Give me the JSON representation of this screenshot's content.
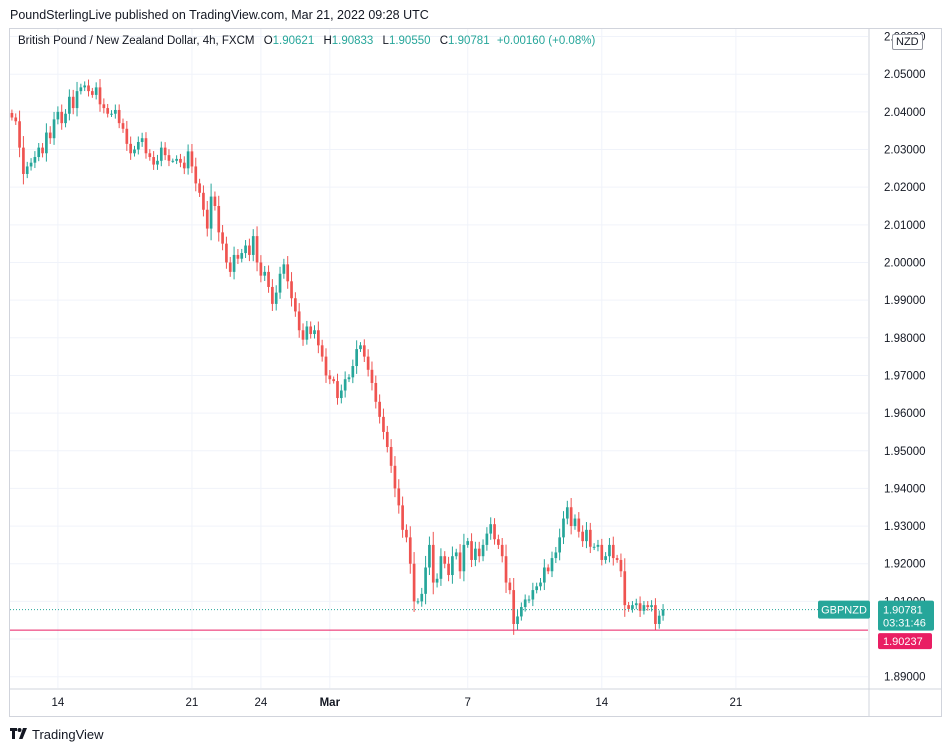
{
  "publisher_line": "PoundSterlingLive published on TradingView.com, Mar 21, 2022 09:28 UTC",
  "legend": {
    "title": "British Pound / New Zealand Dollar, 4h, FXCM",
    "open_key": "O",
    "open": "1.90621",
    "high_key": "H",
    "high": "1.90833",
    "low_key": "L",
    "low": "1.90550",
    "close_key": "C",
    "close": "1.90781",
    "change": "+0.00160 (+0.08%)"
  },
  "currency": "NZD",
  "brand": {
    "name": "TradingView",
    "logo_icon": "tradingview-logo-icon"
  },
  "chart_data": {
    "type": "candlestick",
    "symbol": "GBPNZD",
    "y_axis": {
      "range": [
        1.887,
        2.062
      ],
      "ticks": [
        "1.89000",
        "1.90000",
        "1.91000",
        "1.92000",
        "1.93000",
        "1.94000",
        "1.95000",
        "1.96000",
        "1.97000",
        "1.98000",
        "1.99000",
        "2.00000",
        "2.01000",
        "2.02000",
        "2.03000",
        "2.04000",
        "2.05000",
        "2.06000"
      ]
    },
    "x_axis": {
      "ticks": [
        {
          "label": "14",
          "index": 12
        },
        {
          "label": "21",
          "index": 47
        },
        {
          "label": "24",
          "index": 65
        },
        {
          "label": "Mar",
          "index": 83
        },
        {
          "label": "7",
          "index": 119
        },
        {
          "label": "14",
          "index": 154
        },
        {
          "label": "21",
          "index": 189
        }
      ],
      "total_slots": 224
    },
    "up_color": "#26a69a",
    "down_color": "#ef5350",
    "closes": [
      2.0385,
      2.0375,
      2.0305,
      2.0235,
      2.0255,
      2.0265,
      2.028,
      2.0305,
      2.029,
      2.0345,
      2.033,
      2.038,
      2.04,
      2.037,
      2.0395,
      2.044,
      2.041,
      2.0455,
      2.0465,
      2.047,
      2.0455,
      2.0445,
      2.0465,
      2.042,
      2.041,
      2.0395,
      2.0395,
      2.0405,
      2.037,
      2.0355,
      2.0315,
      2.029,
      2.03,
      2.032,
      2.033,
      2.029,
      2.028,
      2.026,
      2.027,
      2.0305,
      2.0285,
      2.027,
      2.027,
      2.0275,
      2.0265,
      2.025,
      2.0295,
      2.0255,
      2.021,
      2.0185,
      2.014,
      2.009,
      2.0175,
      2.015,
      2.008,
      2.005,
      2.0,
      1.9975,
      2.002,
      2.001,
      2.0025,
      2.0045,
      2.002,
      2.007,
      2.0,
      1.9965,
      1.9975,
      1.9935,
      1.989,
      1.992,
      1.997,
      1.9995,
      1.995,
      1.9905,
      1.987,
      1.982,
      1.9795,
      1.983,
      1.981,
      1.982,
      1.978,
      1.975,
      1.97,
      1.969,
      1.9685,
      1.964,
      1.966,
      1.969,
      1.9695,
      1.9725,
      1.977,
      1.978,
      1.975,
      1.9715,
      1.968,
      1.963,
      1.959,
      1.955,
      1.951,
      1.946,
      1.94,
      1.9355,
      1.929,
      1.927,
      1.92,
      1.91,
      1.91,
      1.912,
      1.919,
      1.925,
      1.915,
      1.916,
      1.922,
      1.92,
      1.917,
      1.922,
      1.923,
      1.918,
      1.925,
      1.926,
      1.921,
      1.924,
      1.922,
      1.925,
      1.928,
      1.9305,
      1.9265,
      1.925,
      1.922,
      1.915,
      1.913,
      1.904,
      1.906,
      1.9085,
      1.9105,
      1.9105,
      1.913,
      1.914,
      1.915,
      1.919,
      1.918,
      1.9215,
      1.923,
      1.927,
      1.932,
      1.935,
      1.93,
      1.932,
      1.9285,
      1.926,
      1.929,
      1.9245,
      1.9245,
      1.925,
      1.921,
      1.922,
      1.925,
      1.9215,
      1.921,
      1.918,
      1.909,
      1.908,
      1.909,
      1.9095,
      1.9075,
      1.909,
      1.9085,
      1.909,
      1.904,
      1.9062,
      1.9078
    ],
    "last_price": {
      "label": "GBPNZD",
      "value": "1.90781",
      "countdown": "03:31:46"
    },
    "horizontal_line": {
      "value": "1.90237",
      "price": 1.90237,
      "color": "#e91e63"
    }
  }
}
